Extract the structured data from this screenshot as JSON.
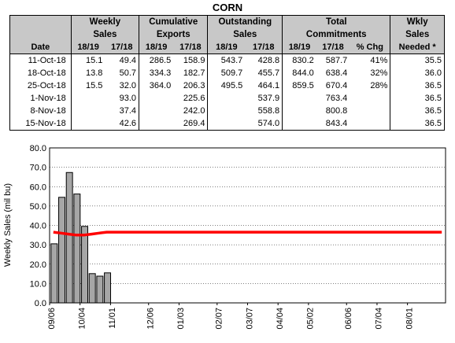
{
  "title": "CORN",
  "table": {
    "groups": [
      "Weekly Sales",
      "Cumulative Exports",
      "Outstanding Sales",
      "Total Commitments",
      "Wkly Sales Needed *"
    ],
    "group_lines": [
      [
        "Weekly",
        "Sales"
      ],
      [
        "Cumulative",
        "Exports"
      ],
      [
        "Outstanding",
        "Sales"
      ],
      [
        "Total",
        "Commitments"
      ],
      [
        "Wkly",
        "Sales",
        "Needed *"
      ]
    ],
    "date_header": "Date",
    "subheaders": [
      "18/19",
      "17/18",
      "18/19",
      "17/18",
      "18/19",
      "17/18",
      "18/19",
      "17/18",
      "% Chg"
    ],
    "rows": [
      [
        "11-Oct-18",
        "15.1",
        "49.4",
        "286.5",
        "158.9",
        "543.7",
        "428.8",
        "830.2",
        "587.7",
        "41%",
        "35.5"
      ],
      [
        "18-Oct-18",
        "13.8",
        "50.7",
        "334.3",
        "182.7",
        "509.7",
        "455.7",
        "844.0",
        "638.4",
        "32%",
        "36.0"
      ],
      [
        "25-Oct-18",
        "15.5",
        "32.0",
        "364.0",
        "206.3",
        "495.5",
        "464.1",
        "859.5",
        "670.4",
        "28%",
        "36.5"
      ],
      [
        "1-Nov-18",
        "",
        "93.0",
        "",
        "225.6",
        "",
        "537.9",
        "",
        "763.4",
        "",
        "36.5"
      ],
      [
        "8-Nov-18",
        "",
        "37.4",
        "",
        "242.0",
        "",
        "558.8",
        "",
        "800.8",
        "",
        "36.5"
      ],
      [
        "15-Nov-18",
        "",
        "42.6",
        "",
        "269.4",
        "",
        "574.0",
        "",
        "843.4",
        "",
        "36.5"
      ]
    ]
  },
  "chart_data": {
    "type": "bar",
    "ylabel": "Weekly Sales (mil bu)",
    "ylim": [
      0,
      80
    ],
    "yticks": [
      "0.0",
      "10.0",
      "20.0",
      "30.0",
      "40.0",
      "50.0",
      "60.0",
      "70.0",
      "80.0"
    ],
    "xticks": [
      "09/06",
      "10/04",
      "11/01",
      "12/06",
      "01/03",
      "02/07",
      "03/07",
      "04/04",
      "05/02",
      "06/06",
      "07/04",
      "08/01"
    ],
    "grid": true,
    "bar_color": "#a6a6a6",
    "line_color": "#ff0000",
    "series": [
      {
        "type": "bar",
        "values": [
          30.5,
          54.5,
          67.3,
          56.2,
          39.5,
          15.1,
          13.8,
          15.5
        ]
      },
      {
        "type": "line",
        "values": [
          36.5,
          36.0,
          35.5,
          35.0,
          35.0,
          35.5,
          36.0,
          36.5,
          36.5,
          36.5,
          36.5,
          36.5,
          36.5,
          36.5,
          36.5,
          36.5,
          36.5,
          36.5,
          36.5,
          36.5,
          36.5,
          36.5,
          36.5,
          36.5,
          36.5,
          36.5,
          36.5,
          36.5,
          36.5,
          36.5,
          36.5,
          36.5,
          36.5,
          36.5,
          36.5,
          36.5,
          36.5,
          36.5,
          36.5,
          36.5,
          36.5,
          36.5,
          36.5,
          36.5,
          36.5,
          36.5,
          36.5,
          36.5,
          36.5,
          36.5,
          36.5,
          36.5
        ]
      }
    ]
  }
}
